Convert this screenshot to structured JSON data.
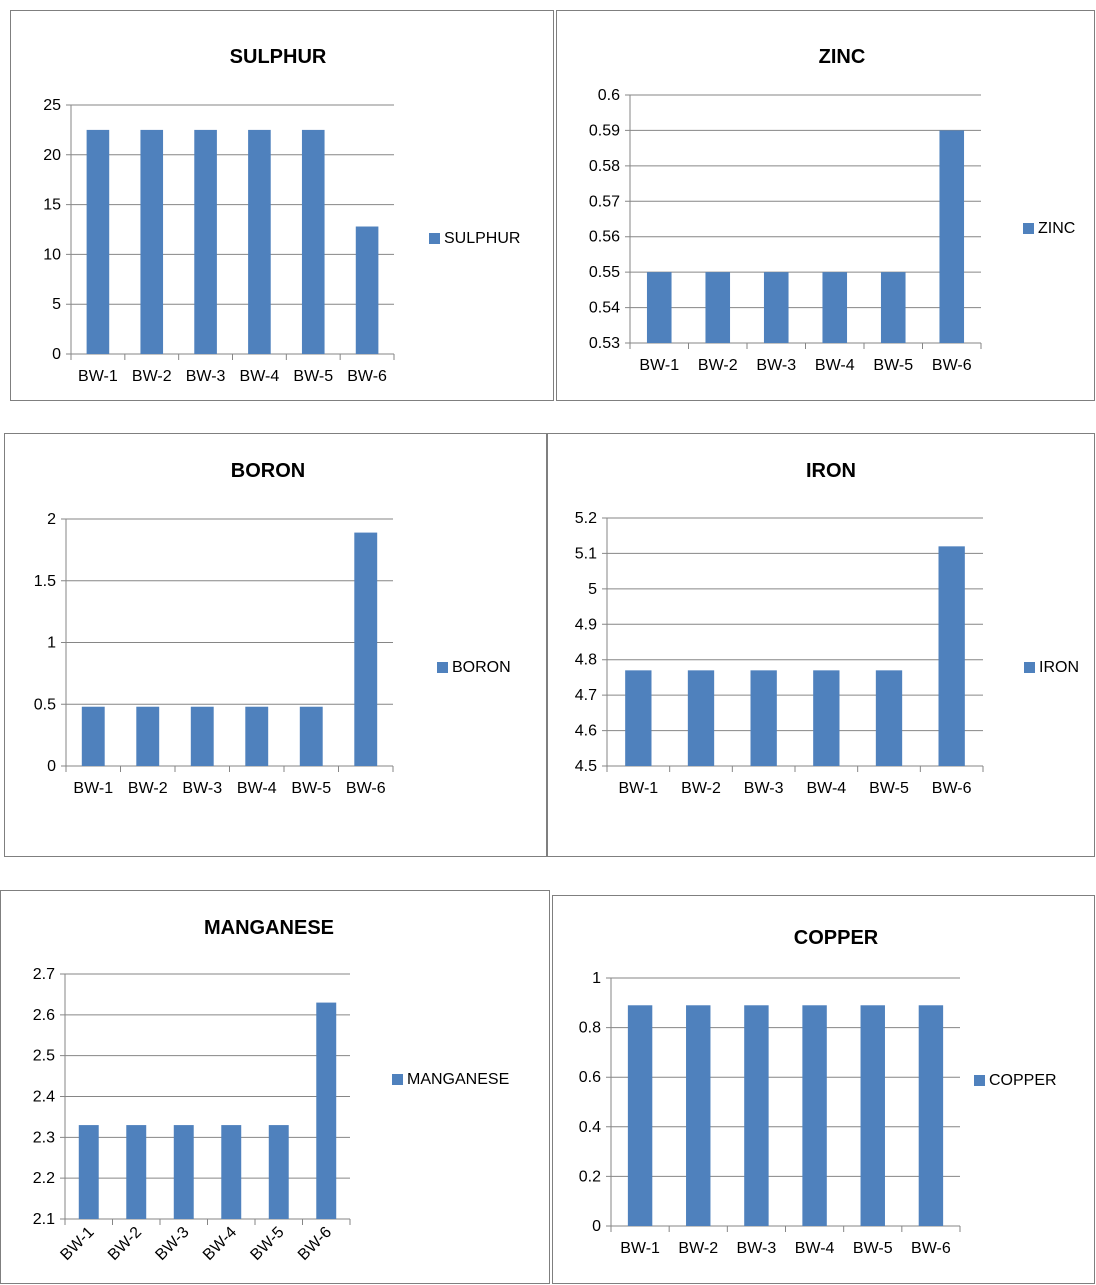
{
  "chart_data": [
    {
      "type": "bar",
      "title": "SULPHUR",
      "categories": [
        "BW-1",
        "BW-2",
        "BW-3",
        "BW-4",
        "BW-5",
        "BW-6"
      ],
      "series": [
        {
          "name": "SULPHUR",
          "values": [
            22.5,
            22.5,
            22.5,
            22.5,
            22.5,
            12.8
          ]
        }
      ],
      "ylim": [
        0,
        25
      ],
      "yticks": [
        "0",
        "5",
        "10",
        "15",
        "20",
        "25"
      ],
      "legend": "right",
      "grid": true,
      "xlabel_rotation": "none"
    },
    {
      "type": "bar",
      "title": "ZINC",
      "categories": [
        "BW-1",
        "BW-2",
        "BW-3",
        "BW-4",
        "BW-5",
        "BW-6"
      ],
      "series": [
        {
          "name": "ZINC",
          "values": [
            0.55,
            0.55,
            0.55,
            0.55,
            0.55,
            0.59
          ]
        }
      ],
      "ylim": [
        0.53,
        0.6
      ],
      "yticks": [
        "0.53",
        "0.54",
        "0.55",
        "0.56",
        "0.57",
        "0.58",
        "0.59",
        "0.6"
      ],
      "legend": "right",
      "grid": true,
      "xlabel_rotation": "none"
    },
    {
      "type": "bar",
      "title": "BORON",
      "categories": [
        "BW-1",
        "BW-2",
        "BW-3",
        "BW-4",
        "BW-5",
        "BW-6"
      ],
      "series": [
        {
          "name": "BORON",
          "values": [
            0.48,
            0.48,
            0.48,
            0.48,
            0.48,
            1.89
          ]
        }
      ],
      "ylim": [
        0,
        2
      ],
      "yticks": [
        "0",
        "0.5",
        "1",
        "1.5",
        "2"
      ],
      "legend": "right",
      "grid": true,
      "xlabel_rotation": "none"
    },
    {
      "type": "bar",
      "title": "IRON",
      "categories": [
        "BW-1",
        "BW-2",
        "BW-3",
        "BW-4",
        "BW-5",
        "BW-6"
      ],
      "series": [
        {
          "name": "IRON",
          "values": [
            4.77,
            4.77,
            4.77,
            4.77,
            4.77,
            5.12
          ]
        }
      ],
      "ylim": [
        4.5,
        5.2
      ],
      "yticks": [
        "4.5",
        "4.6",
        "4.7",
        "4.8",
        "4.9",
        "5",
        "5.1",
        "5.2"
      ],
      "legend": "right",
      "grid": true,
      "xlabel_rotation": "none"
    },
    {
      "type": "bar",
      "title": "MANGANESE",
      "categories": [
        "BW-1",
        "BW-2",
        "BW-3",
        "BW-4",
        "BW-5",
        "BW-6"
      ],
      "series": [
        {
          "name": "MANGANESE",
          "values": [
            2.33,
            2.33,
            2.33,
            2.33,
            2.33,
            2.63
          ]
        }
      ],
      "ylim": [
        2.1,
        2.7
      ],
      "yticks": [
        "2.1",
        "2.2",
        "2.3",
        "2.4",
        "2.5",
        "2.6",
        "2.7"
      ],
      "legend": "right",
      "grid": true,
      "xlabel_rotation": "diagonal"
    },
    {
      "type": "bar",
      "title": "COPPER",
      "categories": [
        "BW-1",
        "BW-2",
        "BW-3",
        "BW-4",
        "BW-5",
        "BW-6"
      ],
      "series": [
        {
          "name": "COPPER",
          "values": [
            0.89,
            0.89,
            0.89,
            0.89,
            0.89,
            0.89
          ]
        }
      ],
      "ylim": [
        0,
        1
      ],
      "yticks": [
        "0",
        "0.2",
        "0.4",
        "0.6",
        "0.8",
        "1"
      ],
      "legend": "right",
      "grid": true,
      "xlabel_rotation": "none"
    }
  ],
  "colors": {
    "bar": "#4f81bd",
    "grid": "#868686",
    "border": "#7f7f7f"
  }
}
